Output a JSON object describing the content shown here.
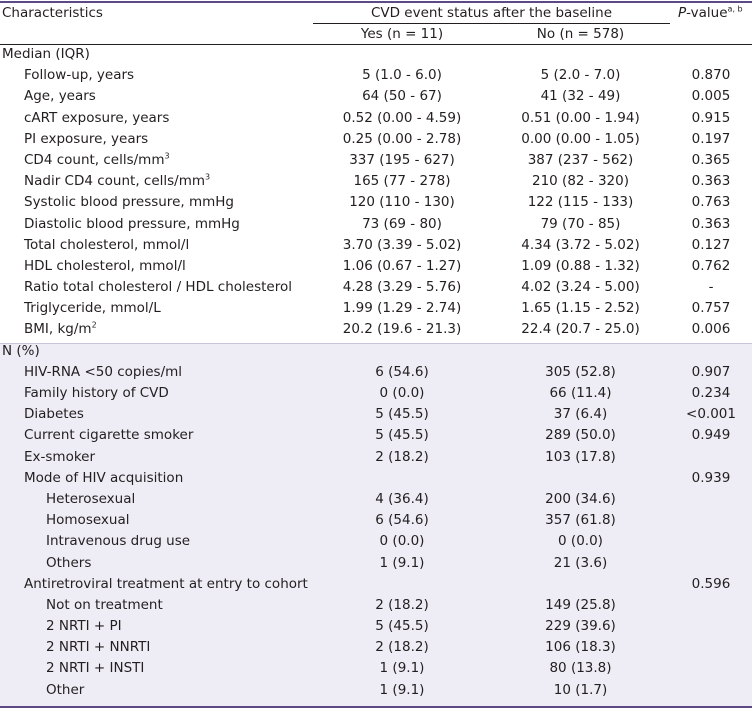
{
  "header": {
    "characteristics": "Characteristics",
    "cvd_group": "CVD event status after the baseline",
    "yes": "Yes (n = 11)",
    "no": "No (n = 578)",
    "p_letter": "P",
    "p_rest": "-value",
    "p_sup": "a, b"
  },
  "rows": [
    {
      "label": "Median (IQR)",
      "indent": 0,
      "yes": "",
      "no": "",
      "p": ""
    },
    {
      "label": "Follow-up, years",
      "indent": 1,
      "yes": "5 (1.0 - 6.0)",
      "no": "5 (2.0 - 7.0)",
      "p": "0.870"
    },
    {
      "label": "Age, years",
      "indent": 1,
      "yes": "64 (50 - 67)",
      "no": "41 (32 - 49)",
      "p": "0.005"
    },
    {
      "label": "cART exposure, years",
      "indent": 1,
      "yes": "0.52 (0.00 - 4.59)",
      "no": "0.51 (0.00 - 1.94)",
      "p": "0.915"
    },
    {
      "label": "PI exposure, years",
      "indent": 1,
      "yes": "0.25 (0.00 - 2.78)",
      "no": "0.00 (0.00 - 1.05)",
      "p": "0.197"
    },
    {
      "label": "CD4 count, cells/mm",
      "sup": "3",
      "indent": 1,
      "yes": "337 (195 - 627)",
      "no": "387 (237 - 562)",
      "p": "0.365"
    },
    {
      "label": "Nadir CD4 count, cells/mm",
      "sup": "3",
      "indent": 1,
      "yes": "165 (77 - 278)",
      "no": "210 (82 - 320)",
      "p": "0.363"
    },
    {
      "label": "Systolic blood pressure, mmHg",
      "indent": 1,
      "yes": "120 (110 - 130)",
      "no": "122 (115 - 133)",
      "p": "0.763"
    },
    {
      "label": "Diastolic blood pressure, mmHg",
      "indent": 1,
      "yes": "73 (69 - 80)",
      "no": "79 (70 - 85)",
      "p": "0.363"
    },
    {
      "label": "Total cholesterol, mmol/l",
      "indent": 1,
      "yes": "3.70 (3.39 - 5.02)",
      "no": "4.34 (3.72 - 5.02)",
      "p": "0.127"
    },
    {
      "label": "HDL cholesterol, mmol/l",
      "indent": 1,
      "yes": "1.06 (0.67 - 1.27)",
      "no": "1.09 (0.88 - 1.32)",
      "p": "0.762"
    },
    {
      "label": "Ratio total cholesterol / HDL cholesterol",
      "indent": 1,
      "yes": "4.28 (3.29 - 5.76)",
      "no": "4.02 (3.24 - 5.00)",
      "p": "-"
    },
    {
      "label": "Triglyceride, mmol/L",
      "indent": 1,
      "yes": "1.99 (1.29 - 2.74)",
      "no": "1.65 (1.15 - 2.52)",
      "p": "0.757"
    },
    {
      "label": "BMI, kg/m",
      "sup": "2",
      "indent": 1,
      "yes": "20.2 (19.6 - 21.3)",
      "no": "22.4 (20.7 - 25.0)",
      "p": "0.006"
    },
    {
      "label": "N (%)",
      "indent": 0,
      "yes": "",
      "no": "",
      "p": ""
    },
    {
      "label": "HIV-RNA <50 copies/ml",
      "indent": 1,
      "yes": "6 (54.6)",
      "no": "305 (52.8)",
      "p": "0.907"
    },
    {
      "label": "Family history of CVD",
      "indent": 1,
      "yes": "0 (0.0)",
      "no": "66 (11.4)",
      "p": "0.234"
    },
    {
      "label": "Diabetes",
      "indent": 1,
      "yes": "5 (45.5)",
      "no": "37 (6.4)",
      "p": "<0.001"
    },
    {
      "label": "Current cigarette smoker",
      "indent": 1,
      "yes": "5 (45.5)",
      "no": "289 (50.0)",
      "p": "0.949"
    },
    {
      "label": "Ex-smoker",
      "indent": 1,
      "yes": "2 (18.2)",
      "no": "103 (17.8)",
      "p": ""
    },
    {
      "label": "Mode of HIV acquisition",
      "indent": 1,
      "yes": "",
      "no": "",
      "p": "0.939"
    },
    {
      "label": "Heterosexual",
      "indent": 2,
      "yes": "4 (36.4)",
      "no": "200 (34.6)",
      "p": ""
    },
    {
      "label": "Homosexual",
      "indent": 2,
      "yes": "6 (54.6)",
      "no": "357 (61.8)",
      "p": ""
    },
    {
      "label": "Intravenous drug use",
      "indent": 2,
      "yes": "0 (0.0)",
      "no": "0 (0.0)",
      "p": ""
    },
    {
      "label": "Others",
      "indent": 2,
      "yes": "1 (9.1)",
      "no": "21 (3.6)",
      "p": ""
    },
    {
      "label": "Antiretroviral treatment at entry to cohort",
      "indent": 1,
      "yes": "",
      "no": "",
      "p": "0.596"
    },
    {
      "label": "Not on treatment",
      "indent": 2,
      "yes": "2 (18.2)",
      "no": "149 (25.8)",
      "p": ""
    },
    {
      "label": "2 NRTI + PI",
      "indent": 2,
      "yes": "5 (45.5)",
      "no": "229 (39.6)",
      "p": ""
    },
    {
      "label": "2 NRTI + NNRTI",
      "indent": 2,
      "yes": "2 (18.2)",
      "no": "106 (18.3)",
      "p": ""
    },
    {
      "label": "2 NRTI + INSTI",
      "indent": 2,
      "yes": "1 (9.1)",
      "no": "80 (13.8)",
      "p": ""
    },
    {
      "label": "Other",
      "indent": 2,
      "yes": "1 (9.1)",
      "no": "10 (1.7)",
      "p": ""
    }
  ]
}
